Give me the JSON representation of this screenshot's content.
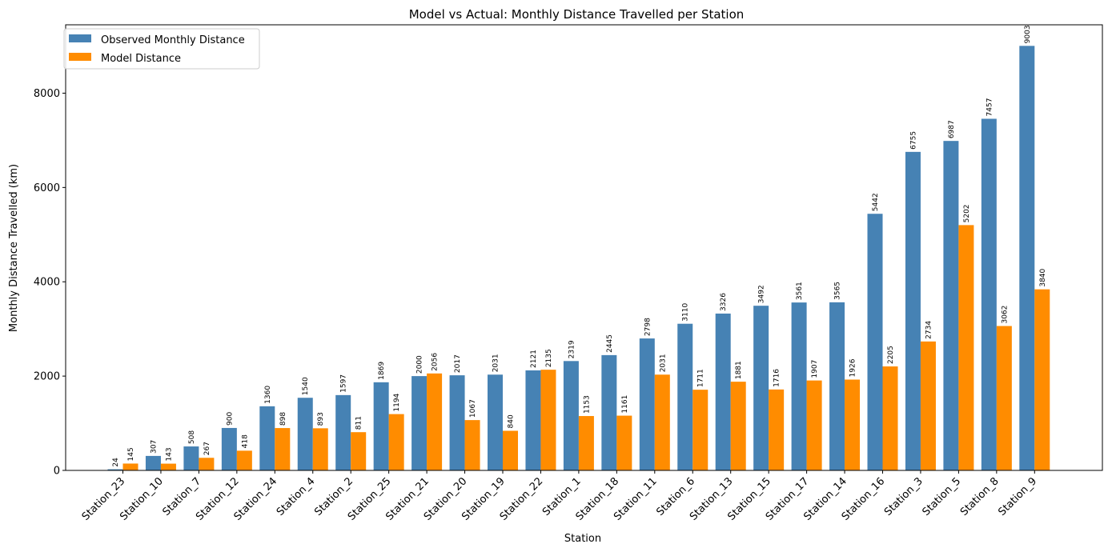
{
  "chart_data": {
    "type": "bar",
    "title": "Model vs Actual: Monthly Distance Travelled per Station",
    "xlabel": "Station",
    "ylabel": "Monthly Distance Travelled (km)",
    "ylim": [
      0,
      9450
    ],
    "yticks": [
      0,
      2000,
      4000,
      6000,
      8000
    ],
    "legend_position": "top-left",
    "grid": false,
    "categories": [
      "Station_23",
      "Station_10",
      "Station_7",
      "Station_12",
      "Station_24",
      "Station_4",
      "Station_2",
      "Station_25",
      "Station_21",
      "Station_20",
      "Station_19",
      "Station_22",
      "Station_1",
      "Station_18",
      "Station_11",
      "Station_6",
      "Station_13",
      "Station_15",
      "Station_17",
      "Station_14",
      "Station_16",
      "Station_3",
      "Station_5",
      "Station_8",
      "Station_9"
    ],
    "series": [
      {
        "name": "Observed Monthly Distance",
        "color": "#4682b4",
        "values": [
          24,
          307,
          508,
          900,
          1360,
          1540,
          1597,
          1869,
          2000,
          2017,
          2031,
          2121,
          2319,
          2445,
          2798,
          3110,
          3326,
          3492,
          3561,
          3565,
          5442,
          6755,
          6987,
          7457,
          9003
        ]
      },
      {
        "name": "Model Distance",
        "color": "#ff8c00",
        "values": [
          145,
          143,
          267,
          418,
          898,
          893,
          811,
          1194,
          2056,
          1067,
          840,
          2135,
          1153,
          1161,
          2031,
          1711,
          1881,
          1716,
          1907,
          1926,
          2205,
          2734,
          5202,
          3062,
          3840
        ]
      }
    ]
  }
}
